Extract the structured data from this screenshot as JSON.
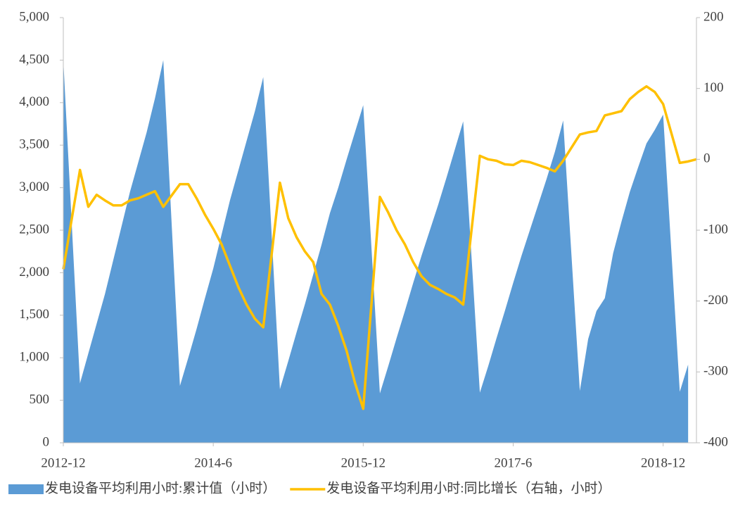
{
  "chart_data": {
    "type": "area_line",
    "x": [
      "2012-12",
      "2013-2",
      "2013-3",
      "2013-4",
      "2013-5",
      "2013-6",
      "2013-7",
      "2013-8",
      "2013-9",
      "2013-10",
      "2013-11",
      "2013-12",
      "2014-2",
      "2014-3",
      "2014-4",
      "2014-5",
      "2014-6",
      "2014-7",
      "2014-8",
      "2014-9",
      "2014-10",
      "2014-11",
      "2014-12",
      "2015-2",
      "2015-3",
      "2015-4",
      "2015-5",
      "2015-6",
      "2015-7",
      "2015-8",
      "2015-9",
      "2015-10",
      "2015-11",
      "2015-12",
      "2016-2",
      "2016-3",
      "2016-4",
      "2016-5",
      "2016-6",
      "2016-7",
      "2016-8",
      "2016-9",
      "2016-10",
      "2016-11",
      "2016-12",
      "2017-2",
      "2017-3",
      "2017-4",
      "2017-5",
      "2017-6",
      "2017-7",
      "2017-8",
      "2017-9",
      "2017-10",
      "2017-11",
      "2017-12",
      "2018-2",
      "2018-3",
      "2018-4",
      "2018-5",
      "2018-6",
      "2018-7",
      "2018-8",
      "2018-9",
      "2018-10",
      "2018-11",
      "2018-12",
      "2019-2",
      "2019-3",
      "2019-4"
    ],
    "xlim": [
      "2012-12",
      "2019-4"
    ],
    "xticks": [
      "2012-12",
      "2014-6",
      "2015-12",
      "2017-6",
      "2018-12"
    ],
    "series": [
      {
        "name": "发电设备平均利用小时:累计值（小时）",
        "color": "#5b9bd5",
        "axis": "y",
        "values": [
          4500,
          700,
          1050,
          1400,
          1750,
          2150,
          2550,
          2950,
          3300,
          3650,
          4050,
          4500,
          670,
          1000,
          1340,
          1700,
          2050,
          2450,
          2850,
          3200,
          3550,
          3900,
          4300,
          630,
          960,
          1300,
          1630,
          1980,
          2330,
          2700,
          3000,
          3330,
          3650,
          3970,
          580,
          900,
          1230,
          1550,
          1880,
          2200,
          2500,
          2800,
          3120,
          3450,
          3780,
          590,
          900,
          1230,
          1550,
          1880,
          2200,
          2500,
          2800,
          3100,
          3420,
          3790,
          610,
          1220,
          1550,
          1700,
          2230,
          2600,
          2950,
          3240,
          3520,
          3680,
          3860,
          600,
          920,
          null
        ]
      },
      {
        "name": "发电设备平均利用小时:同比增长（右轴，小时）",
        "color": "#ffc000",
        "axis": "y2",
        "values": [
          -155,
          -15,
          -67,
          -50,
          -58,
          -65,
          -65,
          -58,
          -55,
          -50,
          -45,
          -67,
          -35,
          -35,
          -55,
          -78,
          -98,
          -120,
          -150,
          -180,
          -205,
          -225,
          -237,
          -33,
          -83,
          -110,
          -130,
          -145,
          -190,
          -205,
          -235,
          -270,
          -315,
          -352,
          -53,
          -75,
          -100,
          -120,
          -145,
          -165,
          -177,
          -183,
          -190,
          -195,
          -205,
          5,
          0,
          -2,
          -7,
          -8,
          -2,
          -4,
          -8,
          -12,
          -17,
          -2,
          35,
          38,
          40,
          62,
          65,
          68,
          85,
          95,
          103,
          95,
          78,
          -5,
          -3,
          0
        ]
      }
    ],
    "ylim": [
      0,
      5000
    ],
    "yticks": [
      0,
      {
        "value": 500,
        "label": "500"
      },
      {
        "value": 1000,
        "label": "1,000"
      },
      {
        "value": 1500,
        "label": "1,500"
      },
      {
        "value": 2000,
        "label": "2,000"
      },
      {
        "value": 2500,
        "label": "2,500"
      },
      {
        "value": 3000,
        "label": "3,000"
      },
      {
        "value": 3500,
        "label": "3,500"
      },
      {
        "value": 4000,
        "label": "4,000"
      },
      {
        "value": 4500,
        "label": "4,500"
      },
      {
        "value": 5000,
        "label": "5,000"
      }
    ],
    "y2lim": [
      -400,
      200
    ],
    "y2ticks": [
      -400,
      -300,
      -200,
      -100,
      0,
      100,
      200
    ]
  }
}
